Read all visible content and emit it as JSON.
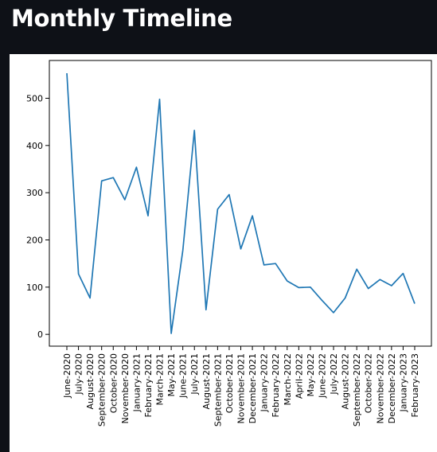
{
  "page": {
    "title": "Monthly Timeline"
  },
  "chart_data": {
    "type": "line",
    "title": "",
    "xlabel": "",
    "ylabel": "",
    "line_color": "#1f77b4",
    "grid": false,
    "legend": "none",
    "ylim": [
      -25,
      580
    ],
    "yticks": [
      0,
      100,
      200,
      300,
      400,
      500
    ],
    "x": [
      "June-2020",
      "July-2020",
      "August-2020",
      "September-2020",
      "October-2020",
      "November-2020",
      "January-2021",
      "February-2021",
      "March-2021",
      "May-2021",
      "June-2021",
      "July-2021",
      "August-2021",
      "September-2021",
      "October-2021",
      "November-2021",
      "December-2021",
      "January-2022",
      "February-2022",
      "March-2022",
      "April-2022",
      "May-2022",
      "June-2022",
      "July-2022",
      "August-2022",
      "September-2022",
      "October-2022",
      "November-2022",
      "December-2022",
      "January-2023",
      "February-2023"
    ],
    "series": [
      {
        "values": [
          553,
          128,
          77,
          325,
          332,
          285,
          354,
          251,
          498,
          2,
          178,
          432,
          52,
          265,
          296,
          181,
          251,
          147,
          150,
          113,
          99,
          100,
          72,
          46,
          77,
          138,
          97,
          116,
          103,
          129,
          65
        ]
      }
    ]
  }
}
